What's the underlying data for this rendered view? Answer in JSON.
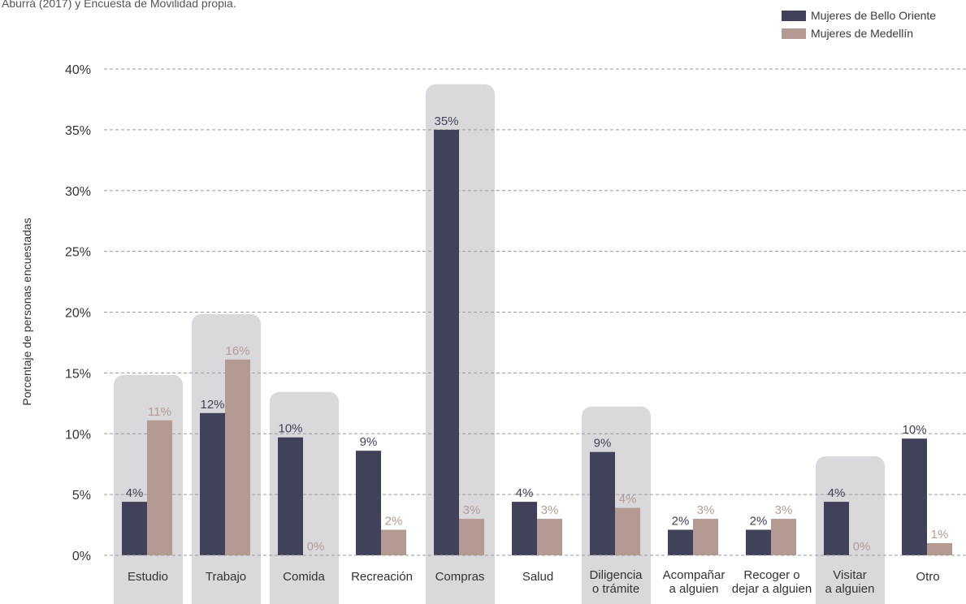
{
  "note": "Aburrá (2017) y Encuesta de Movilidad propia.",
  "colors": {
    "bello": "#414159",
    "medellin": "#b39b93",
    "highlight": "#d9d9dc",
    "grid": "#9a9a9a",
    "text": "#333333"
  },
  "chart_data": {
    "type": "bar",
    "title": "",
    "xlabel": "",
    "ylabel": "Porcentaje de personas encuestadas",
    "ylim": [
      0,
      40
    ],
    "y_ticks": [
      "0%",
      "5%",
      "10%",
      "15%",
      "20%",
      "25%",
      "30%",
      "35%",
      "40%"
    ],
    "grid": true,
    "legend_position": "top-right",
    "categories": [
      [
        "Estudio"
      ],
      [
        "Trabajo"
      ],
      [
        "Comida"
      ],
      [
        "Recreación"
      ],
      [
        "Compras"
      ],
      [
        "Salud"
      ],
      [
        "Diligencia",
        "o trámite"
      ],
      [
        "Acompañar",
        "a alguien"
      ],
      [
        "Recoger o",
        "dejar a alguien"
      ],
      [
        "Visitar",
        "a alguien"
      ],
      [
        "Otro"
      ]
    ],
    "highlighted": [
      true,
      true,
      true,
      false,
      true,
      false,
      true,
      false,
      false,
      true,
      false
    ],
    "series": [
      {
        "name": "Mujeres de Bello Oriente",
        "values": [
          4.4,
          11.7,
          9.7,
          8.6,
          35,
          4.4,
          8.5,
          2.1,
          2.1,
          4.4,
          9.6
        ],
        "labels": [
          "4%",
          "12%",
          "10%",
          "9%",
          "35%",
          "4%",
          "9%",
          "2%",
          "2%",
          "4%",
          "10%"
        ]
      },
      {
        "name": "Mujeres de Medellín",
        "values": [
          11.1,
          16.1,
          0,
          2.1,
          3,
          3,
          3.9,
          3,
          3,
          0,
          1
        ],
        "labels": [
          "11%",
          "16%",
          "0%",
          "2%",
          "3%",
          "3%",
          "4%",
          "3%",
          "3%",
          "0%",
          "1%"
        ]
      }
    ]
  }
}
